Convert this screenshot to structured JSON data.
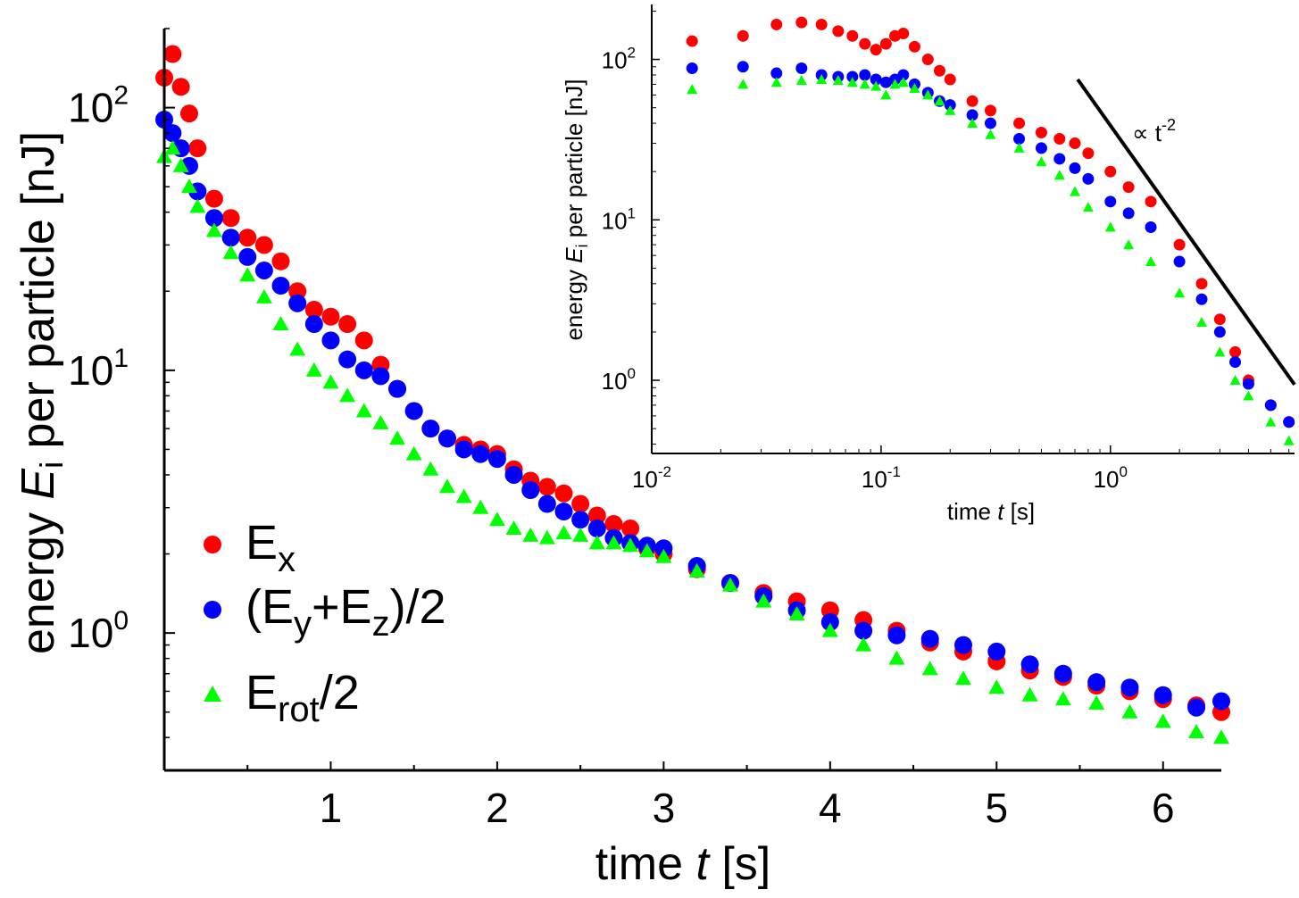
{
  "chart_data": [
    {
      "type": "scatter",
      "role": "main",
      "xlabel_text": "time ",
      "xlabel_var": "t",
      "xlabel_unit": " [s]",
      "ylabel_text": "energy ",
      "ylabel_var": "E",
      "ylabel_sub": "i",
      "ylabel_unit": " per particle [nJ]",
      "xscale": "linear",
      "yscale": "log",
      "xlim": [
        0,
        6.35
      ],
      "ylim": [
        0.3,
        200
      ],
      "xticks": [
        "1",
        "2",
        "3",
        "4",
        "5",
        "6"
      ],
      "yticks": [
        {
          "base": "10",
          "exp": "0"
        },
        {
          "base": "10",
          "exp": "1"
        },
        {
          "base": "10",
          "exp": "2"
        }
      ],
      "legend_position": "bottom-left",
      "series": [
        {
          "name": "Ex",
          "color": "#ff0000",
          "marker": "circle",
          "x": [
            0.0,
            0.05,
            0.1,
            0.15,
            0.2,
            0.3,
            0.4,
            0.5,
            0.6,
            0.7,
            0.8,
            0.9,
            1.0,
            1.1,
            1.2,
            1.3,
            1.4,
            1.5,
            1.6,
            1.7,
            1.8,
            1.9,
            2.0,
            2.1,
            2.2,
            2.3,
            2.4,
            2.5,
            2.6,
            2.7,
            2.8,
            2.9,
            3.0,
            3.2,
            3.4,
            3.6,
            3.8,
            4.0,
            4.2,
            4.4,
            4.6,
            4.8,
            5.0,
            5.2,
            5.4,
            5.6,
            5.8,
            6.0,
            6.2,
            6.35
          ],
          "y": [
            130,
            160,
            120,
            95,
            70,
            45,
            38,
            32,
            30,
            26,
            20,
            17,
            16,
            15,
            13,
            10.5,
            8.5,
            7,
            6,
            5.5,
            5.2,
            5.0,
            4.8,
            4.2,
            3.8,
            3.6,
            3.4,
            3.1,
            2.8,
            2.6,
            2.5,
            2.1,
            2.0,
            1.75,
            1.55,
            1.42,
            1.32,
            1.22,
            1.12,
            1.02,
            0.92,
            0.85,
            0.78,
            0.72,
            0.68,
            0.63,
            0.6,
            0.56,
            0.53,
            0.5
          ]
        },
        {
          "name": "(Ey+Ez)/2",
          "color": "#0000ff",
          "marker": "circle",
          "x": [
            0.0,
            0.05,
            0.1,
            0.15,
            0.2,
            0.3,
            0.4,
            0.5,
            0.6,
            0.7,
            0.8,
            0.9,
            1.0,
            1.1,
            1.2,
            1.3,
            1.4,
            1.5,
            1.6,
            1.7,
            1.8,
            1.9,
            2.0,
            2.1,
            2.2,
            2.3,
            2.4,
            2.5,
            2.6,
            2.7,
            2.8,
            2.9,
            3.0,
            3.2,
            3.4,
            3.6,
            3.8,
            4.0,
            4.2,
            4.4,
            4.6,
            4.8,
            5.0,
            5.2,
            5.4,
            5.6,
            5.8,
            6.0,
            6.2,
            6.35
          ],
          "y": [
            90,
            80,
            70,
            60,
            48,
            38,
            32,
            27,
            24,
            21,
            18,
            15,
            13,
            11,
            10,
            9.5,
            8.5,
            7,
            6,
            5.5,
            5.0,
            4.8,
            4.6,
            4.0,
            3.5,
            3.1,
            2.9,
            2.7,
            2.5,
            2.3,
            2.2,
            2.15,
            2.1,
            1.8,
            1.55,
            1.38,
            1.22,
            1.1,
            1.02,
            0.98,
            0.95,
            0.9,
            0.85,
            0.76,
            0.7,
            0.65,
            0.62,
            0.58,
            0.52,
            0.55
          ]
        },
        {
          "name": "Erot/2",
          "color": "#00ff00",
          "marker": "triangle",
          "x": [
            0.0,
            0.05,
            0.1,
            0.15,
            0.2,
            0.3,
            0.4,
            0.5,
            0.6,
            0.7,
            0.8,
            0.9,
            1.0,
            1.1,
            1.2,
            1.3,
            1.4,
            1.5,
            1.6,
            1.7,
            1.8,
            1.9,
            2.0,
            2.1,
            2.2,
            2.3,
            2.4,
            2.5,
            2.6,
            2.7,
            2.8,
            2.9,
            3.0,
            3.2,
            3.4,
            3.6,
            3.8,
            4.0,
            4.2,
            4.4,
            4.6,
            4.8,
            5.0,
            5.2,
            5.4,
            5.6,
            5.8,
            6.0,
            6.2,
            6.35
          ],
          "y": [
            65,
            70,
            60,
            50,
            42,
            34,
            28,
            23,
            19,
            15,
            12,
            10,
            9,
            8,
            7,
            6.3,
            5.5,
            4.8,
            4.2,
            3.6,
            3.3,
            3.0,
            2.7,
            2.5,
            2.35,
            2.3,
            2.4,
            2.35,
            2.2,
            2.2,
            2.15,
            2.05,
            1.95,
            1.72,
            1.52,
            1.32,
            1.18,
            1.02,
            0.9,
            0.8,
            0.73,
            0.67,
            0.62,
            0.58,
            0.56,
            0.54,
            0.5,
            0.46,
            0.42,
            0.4
          ]
        }
      ],
      "legend": [
        {
          "base": "E",
          "sub": "x",
          "after": ""
        },
        {
          "base": "(E",
          "sub": "y",
          "mid": "+E",
          "sub2": "z",
          "after": ")/2"
        },
        {
          "base": "E",
          "sub": "rot",
          "after": "/2"
        }
      ]
    },
    {
      "type": "scatter",
      "role": "inset",
      "xlabel_text": "time ",
      "xlabel_var": "t",
      "xlabel_unit": " [s]",
      "ylabel_text": "energy ",
      "ylabel_var": "E",
      "ylabel_sub": "i",
      "ylabel_unit": " per particle [nJ]",
      "xscale": "log",
      "yscale": "log",
      "xlim": [
        0.01,
        6.35
      ],
      "ylim": [
        0.35,
        220
      ],
      "xticks": [
        {
          "base": "10",
          "exp": "-2",
          "value": 0.01
        },
        {
          "base": "10",
          "exp": "-1",
          "value": 0.1
        },
        {
          "base": "10",
          "exp": "0",
          "value": 1
        }
      ],
      "yticks": [
        {
          "base": "10",
          "exp": "0",
          "value": 1
        },
        {
          "base": "10",
          "exp": "1",
          "value": 10
        },
        {
          "base": "10",
          "exp": "2",
          "value": 100
        }
      ],
      "annotation": {
        "text": "∝ t",
        "exp": "-2",
        "slope": -2,
        "x": [
          0.72,
          6.35
        ],
        "y": [
          75,
          0.94
        ]
      },
      "series": [
        {
          "name": "Ex",
          "color": "#ff0000",
          "marker": "circle",
          "x": [
            0.015,
            0.025,
            0.035,
            0.045,
            0.055,
            0.065,
            0.075,
            0.085,
            0.095,
            0.105,
            0.115,
            0.125,
            0.14,
            0.16,
            0.18,
            0.2,
            0.25,
            0.3,
            0.4,
            0.5,
            0.6,
            0.7,
            0.8,
            1.0,
            1.2,
            1.5,
            2.0,
            2.5,
            3.0,
            3.5,
            4.0,
            5.0,
            6.0
          ],
          "y": [
            130,
            140,
            165,
            170,
            165,
            150,
            140,
            125,
            115,
            125,
            140,
            145,
            120,
            100,
            85,
            75,
            55,
            48,
            40,
            35,
            32,
            30,
            26,
            20,
            16,
            13,
            7,
            4,
            2.4,
            1.5,
            1.0,
            0.7,
            0.55
          ]
        },
        {
          "name": "(Ey+Ez)/2",
          "color": "#0000ff",
          "marker": "circle",
          "x": [
            0.015,
            0.025,
            0.035,
            0.045,
            0.055,
            0.065,
            0.075,
            0.085,
            0.095,
            0.105,
            0.115,
            0.125,
            0.14,
            0.16,
            0.18,
            0.2,
            0.25,
            0.3,
            0.4,
            0.5,
            0.6,
            0.7,
            0.8,
            1.0,
            1.2,
            1.5,
            2.0,
            2.5,
            3.0,
            3.5,
            4.0,
            5.0,
            6.0
          ],
          "y": [
            88,
            90,
            82,
            88,
            80,
            78,
            78,
            80,
            75,
            72,
            75,
            80,
            70,
            62,
            55,
            52,
            45,
            40,
            32,
            28,
            24,
            21,
            18,
            13,
            11,
            9,
            5.5,
            3.2,
            2.0,
            1.3,
            0.95,
            0.7,
            0.55
          ]
        },
        {
          "name": "Erot/2",
          "color": "#00ff00",
          "marker": "triangle",
          "x": [
            0.015,
            0.025,
            0.035,
            0.045,
            0.055,
            0.065,
            0.075,
            0.085,
            0.095,
            0.105,
            0.115,
            0.125,
            0.14,
            0.16,
            0.18,
            0.2,
            0.25,
            0.3,
            0.4,
            0.5,
            0.6,
            0.7,
            0.8,
            1.0,
            1.2,
            1.5,
            2.0,
            2.5,
            3.0,
            3.5,
            4.0,
            5.0,
            6.0
          ],
          "y": [
            65,
            70,
            72,
            74,
            75,
            74,
            72,
            70,
            68,
            60,
            70,
            72,
            66,
            60,
            55,
            48,
            40,
            34,
            28,
            23,
            19,
            15,
            12,
            9,
            7,
            5.5,
            3.5,
            2.3,
            1.5,
            1.0,
            0.8,
            0.55,
            0.42
          ]
        }
      ]
    }
  ]
}
